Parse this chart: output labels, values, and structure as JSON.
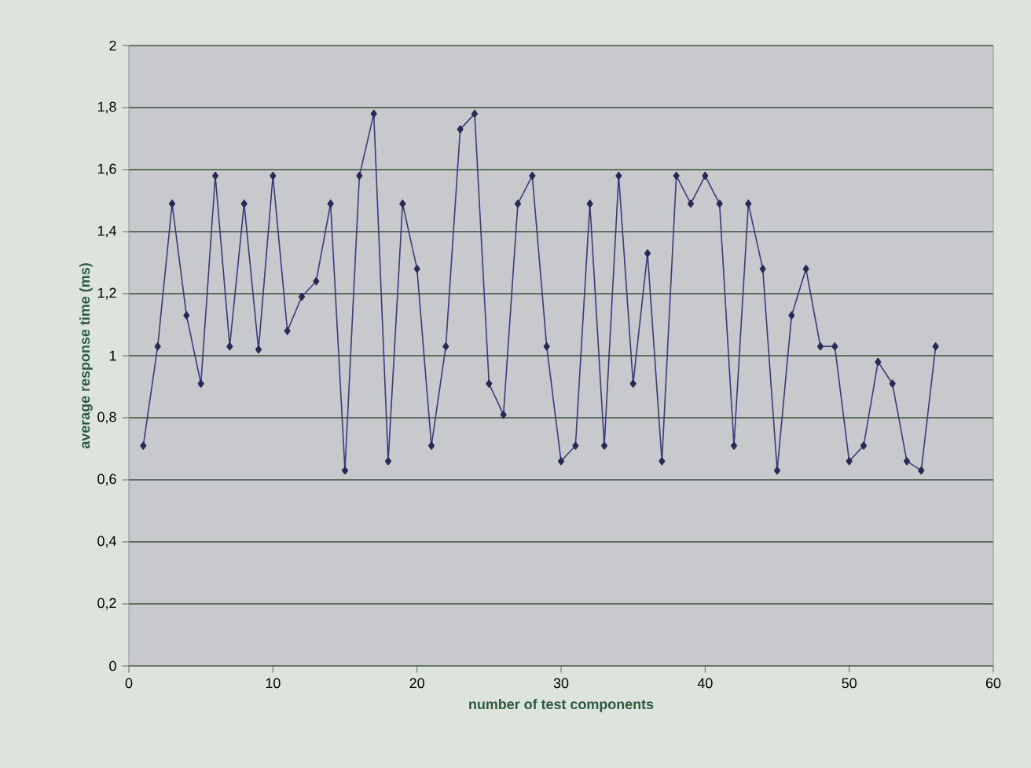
{
  "chart_data": {
    "type": "line",
    "xlabel": "number of test components",
    "ylabel": "average response time (ms)",
    "x": [
      1,
      2,
      3,
      4,
      5,
      6,
      7,
      8,
      9,
      10,
      11,
      12,
      13,
      14,
      15,
      16,
      17,
      18,
      19,
      20,
      21,
      22,
      23,
      24,
      25,
      26,
      27,
      28,
      29,
      30,
      31,
      32,
      33,
      34,
      35,
      36,
      37,
      38,
      39,
      40,
      41,
      42,
      43,
      44,
      45,
      46,
      47,
      48,
      49,
      50,
      51,
      52,
      53,
      54,
      55,
      56
    ],
    "series": [
      {
        "color": "#3a3a78",
        "values": [
          0.71,
          1.03,
          1.49,
          1.13,
          0.91,
          1.58,
          1.03,
          1.49,
          1.02,
          1.58,
          1.08,
          1.19,
          1.24,
          1.49,
          0.63,
          1.58,
          1.78,
          0.66,
          1.49,
          1.28,
          0.71,
          1.03,
          1.73,
          1.78,
          0.91,
          0.81,
          1.49,
          1.58,
          1.03,
          0.66,
          0.71,
          1.49,
          0.71,
          1.58,
          0.91,
          1.33,
          0.66,
          1.58,
          1.49,
          1.58,
          1.49,
          0.71,
          1.49,
          1.28,
          0.63,
          1.13,
          1.28,
          1.03,
          1.03,
          0.66,
          0.71,
          0.98,
          0.91,
          0.66,
          0.63,
          1.03
        ]
      }
    ],
    "xlim": [
      0,
      60
    ],
    "xticks": [
      0,
      10,
      20,
      30,
      40,
      50,
      60
    ],
    "ylim": [
      0,
      2
    ],
    "yticks": [
      0,
      {
        "value": 0.2,
        "label": "0,2"
      },
      {
        "value": 0.4,
        "label": "0,4"
      },
      {
        "value": 0.6,
        "label": "0,6"
      },
      {
        "value": 0.8,
        "label": "0,8"
      },
      1,
      {
        "value": 1.2,
        "label": "1,2"
      },
      {
        "value": 1.4,
        "label": "1,4"
      },
      {
        "value": 1.6,
        "label": "1,6"
      },
      {
        "value": 1.8,
        "label": "1,8"
      },
      2
    ],
    "grid": "y",
    "marker": "diamond",
    "line_style": "solid"
  }
}
